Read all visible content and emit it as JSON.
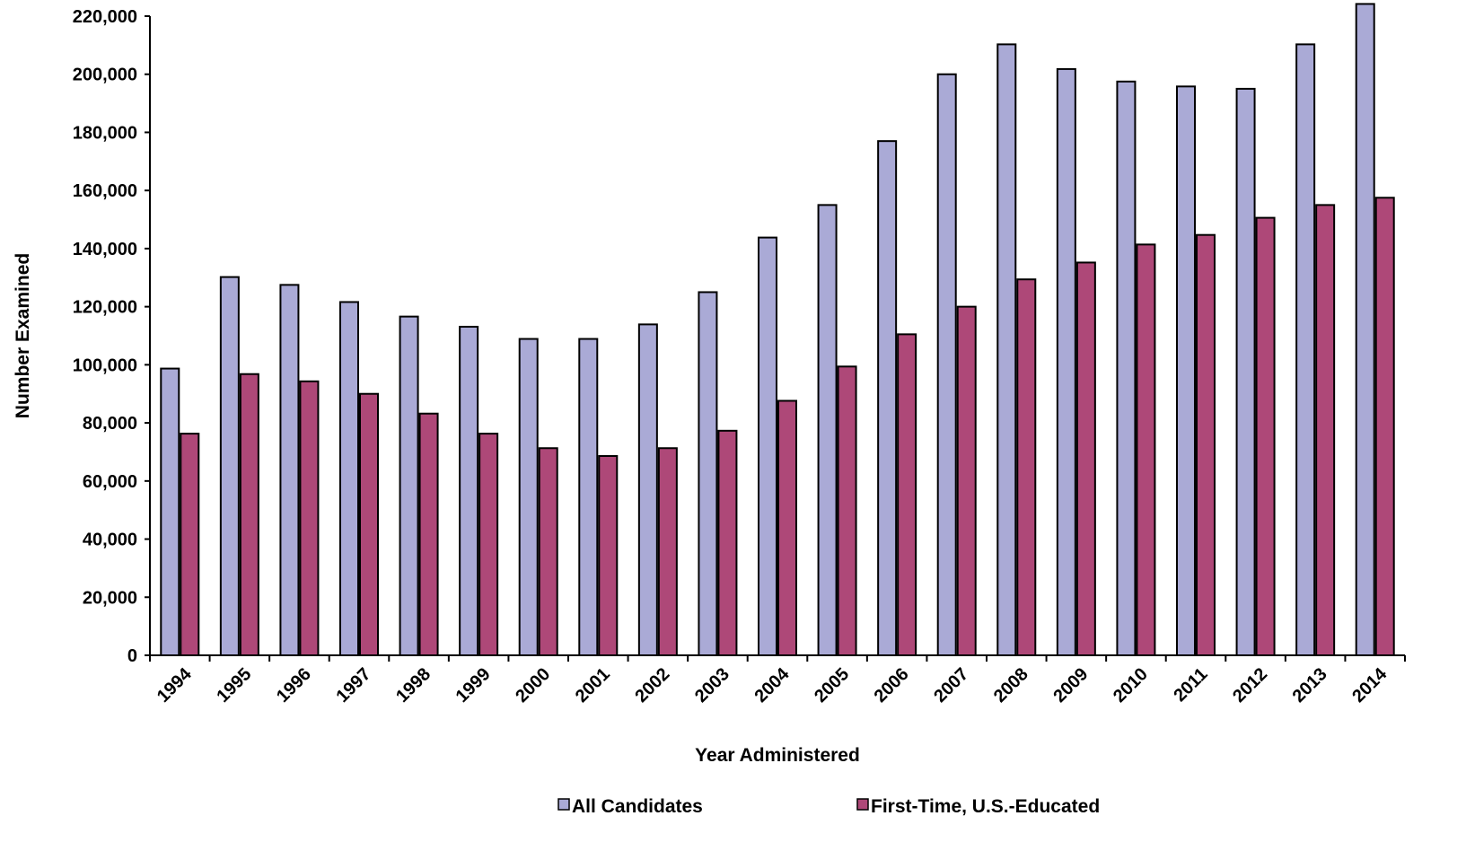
{
  "chart_data": {
    "type": "bar",
    "xlabel": "Year Administered",
    "ylabel": "Number Examined",
    "ylim": [
      0,
      220000
    ],
    "yticks": [
      0,
      20000,
      40000,
      60000,
      80000,
      100000,
      120000,
      140000,
      160000,
      180000,
      200000,
      220000
    ],
    "ytick_labels": [
      "0",
      "20,000",
      "40,000",
      "60,000",
      "80,000",
      "100,000",
      "120,000",
      "140,000",
      "160,000",
      "180,000",
      "200,000",
      "220,000"
    ],
    "categories": [
      "1994",
      "1995",
      "1996",
      "1997",
      "1998",
      "1999",
      "2000",
      "2001",
      "2002",
      "2003",
      "2004",
      "2005",
      "2006",
      "2007",
      "2008",
      "2009",
      "2010",
      "2011",
      "2012",
      "2013",
      "2014"
    ],
    "series": [
      {
        "name": "All Candidates",
        "color": "#aaaad6",
        "values": [
          98700,
          130200,
          127500,
          121600,
          116600,
          113100,
          108900,
          108900,
          113900,
          125000,
          143800,
          155000,
          177000,
          200000,
          210300,
          201800,
          197500,
          195800,
          195000,
          210300,
          224200
        ]
      },
      {
        "name": "First-Time, U.S.-Educated",
        "color": "#ae4878",
        "values": [
          76300,
          96800,
          94300,
          90000,
          83200,
          76300,
          71300,
          68600,
          71300,
          77300,
          87600,
          99400,
          110500,
          120000,
          129400,
          135200,
          141400,
          144700,
          150600,
          155000,
          157500
        ]
      }
    ],
    "grid": false,
    "legend_position": "bottom-center"
  }
}
